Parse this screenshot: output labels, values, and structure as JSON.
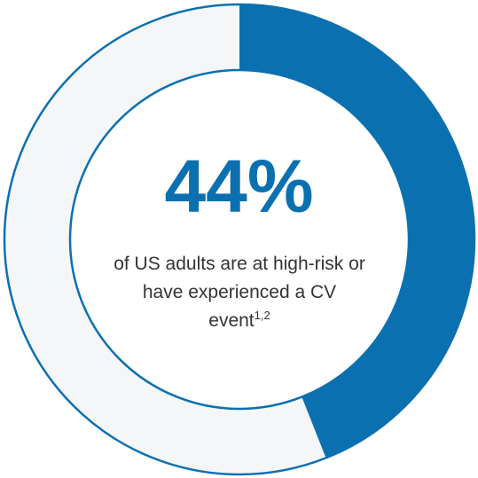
{
  "chart_data": {
    "type": "donut",
    "values": [
      44
    ],
    "value_labels": [
      "44%"
    ],
    "color": "#0b70b0",
    "caption": "of US adults are at high-risk or have experienced a CV event",
    "footnote": "1,2"
  }
}
